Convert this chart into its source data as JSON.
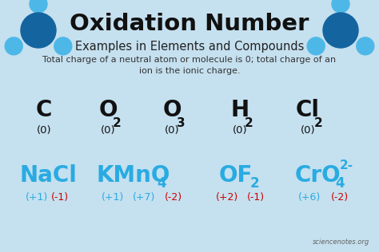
{
  "title": "Oxidation Number",
  "subtitle": "Examples in Elements and Compounds",
  "description": "Total charge of a neutral atom or molecule is 0; total charge of an\nion is the ionic charge.",
  "bg_color": "#c5e0ef",
  "title_color": "#111111",
  "subtitle_color": "#222222",
  "desc_color": "#333333",
  "blue_color": "#29ABE2",
  "red_color": "#CC0000",
  "dark_color": "#111111",
  "dark_blue": "#1464A0",
  "light_blue_circle": "#4DB8E8",
  "watermark": "sciencenotes.org"
}
